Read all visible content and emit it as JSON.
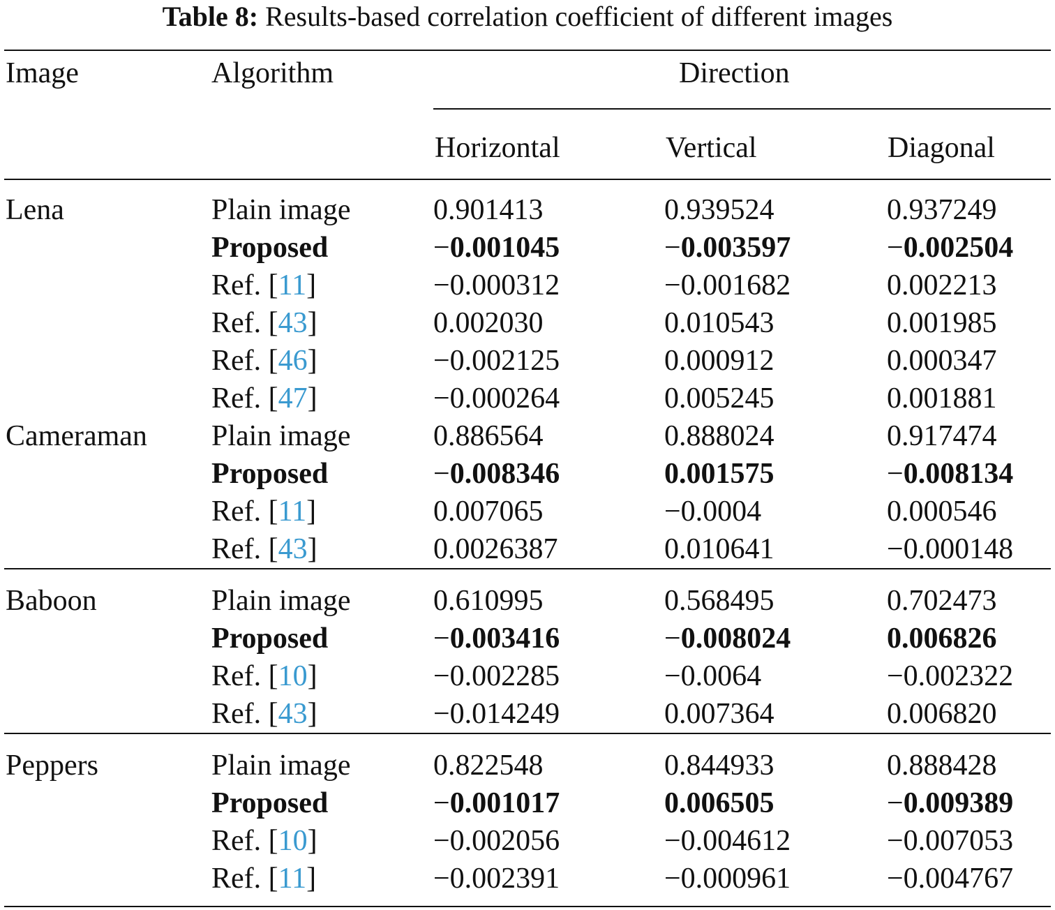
{
  "caption": {
    "label": "Table 8:",
    "text": "Results-based correlation coefficient of different images"
  },
  "header": {
    "image": "Image",
    "algorithm": "Algorithm",
    "direction": "Direction",
    "horizontal": "Horizontal",
    "vertical": "Vertical",
    "diagonal": "Diagonal"
  },
  "rows": [
    {
      "image": "Lena",
      "alg": "Plain image",
      "h": "0.901413",
      "v": "0.939524",
      "d": "0.937249"
    },
    {
      "alg": "Proposed",
      "bold": true,
      "h": "−0.001045",
      "v": "−0.003597",
      "d": "−0.002504"
    },
    {
      "alg": "Ref. [",
      "ref": "11",
      "h": "−0.000312",
      "v": "−0.001682",
      "d": "0.002213"
    },
    {
      "alg": "Ref. [",
      "ref": "43",
      "h": "0.002030",
      "v": "0.010543",
      "d": "0.001985"
    },
    {
      "alg": "Ref. [",
      "ref": "46",
      "h": "−0.002125",
      "v": "0.000912",
      "d": "0.000347"
    },
    {
      "alg": "Ref. [",
      "ref": "47",
      "h": "−0.000264",
      "v": "0.005245",
      "d": "0.001881"
    },
    {
      "image": "Cameraman",
      "alg": "Plain image",
      "h": "0.886564",
      "v": "0.888024",
      "d": "0.917474"
    },
    {
      "alg": "Proposed",
      "bold": true,
      "h": "−0.008346",
      "v": "0.001575",
      "d": "−0.008134"
    },
    {
      "alg": "Ref. [",
      "ref": "11",
      "h": "0.007065",
      "v": "−0.0004",
      "d": "0.000546"
    },
    {
      "alg": "Ref. [",
      "ref": "43",
      "h": "0.0026387",
      "v": "0.010641",
      "d": "−0.000148"
    },
    {
      "image": "Baboon",
      "alg": "Plain image",
      "h": "0.610995",
      "v": "0.568495",
      "d": "0.702473"
    },
    {
      "alg": "Proposed",
      "bold": true,
      "h": "−0.003416",
      "v": "−0.008024",
      "d": "0.006826"
    },
    {
      "alg": "Ref. [",
      "ref": "10",
      "h": "−0.002285",
      "v": "−0.0064",
      "d": "−0.002322"
    },
    {
      "alg": "Ref. [",
      "ref": "43",
      "h": "−0.014249",
      "v": "0.007364",
      "d": "0.006820"
    },
    {
      "image": "Peppers",
      "alg": "Plain image",
      "h": "0.822548",
      "v": "0.844933",
      "d": "0.888428"
    },
    {
      "alg": "Proposed",
      "bold": true,
      "h": "−0.001017",
      "v": "0.006505",
      "d": "−0.009389"
    },
    {
      "alg": "Ref. [",
      "ref": "10",
      "h": "−0.002056",
      "v": "−0.004612",
      "d": "−0.007053"
    },
    {
      "alg": "Ref. [",
      "ref": "11",
      "h": "−0.002391",
      "v": "−0.000961",
      "d": "−0.004767"
    }
  ],
  "ref_close": "]"
}
